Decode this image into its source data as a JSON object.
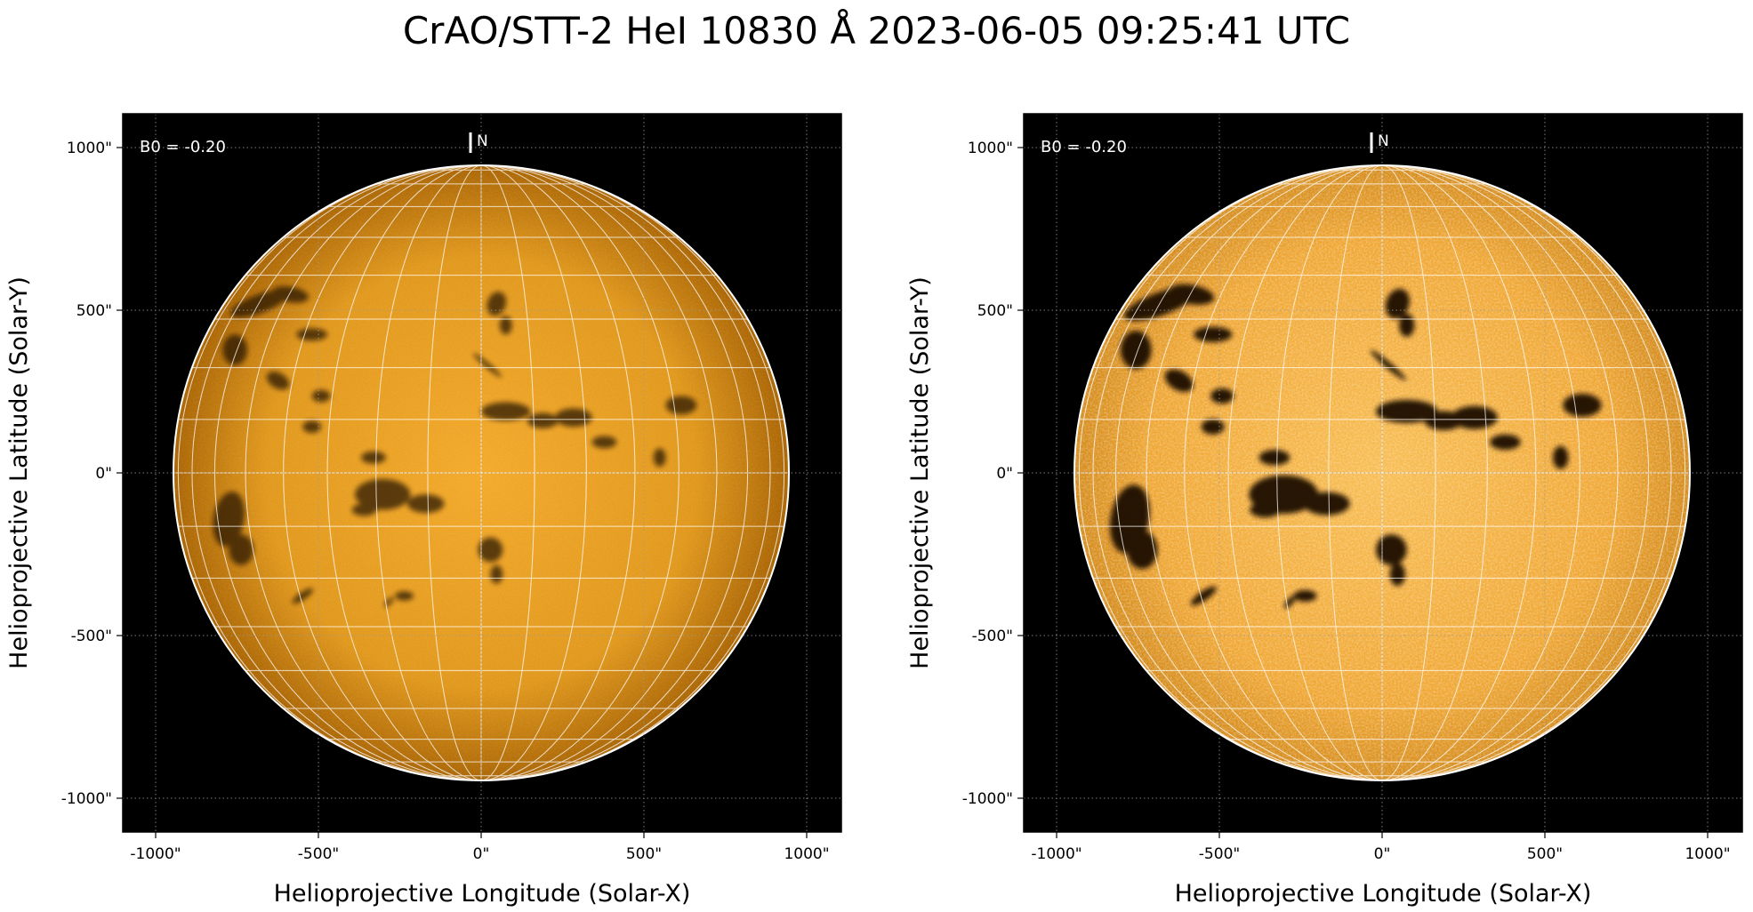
{
  "title": "CrAO/STT-2 HeI 10830 Å 2023-06-05 09:25:41 UTC",
  "panels": [
    {
      "id": "left",
      "xlabel": "Helioprojective Longitude (Solar-X)",
      "ylabel": "Helioprojective Latitude (Solar-Y)",
      "x_ticks": [
        "-1000\"",
        "-500\"",
        "0\"",
        "500\"",
        "1000\""
      ],
      "y_ticks": [
        "1000\"",
        "500\"",
        "0\"",
        "-500\"",
        "-1000\""
      ],
      "b0_label": "B0 = -0.20",
      "north_label": "N",
      "contrast": "normal"
    },
    {
      "id": "right",
      "xlabel": "Helioprojective Longitude (Solar-X)",
      "ylabel": "Helioprojective Latitude (Solar-Y)",
      "x_ticks": [
        "-1000\"",
        "-500\"",
        "0\"",
        "500\"",
        "1000\""
      ],
      "y_ticks": [
        "1000\"",
        "500\"",
        "0\"",
        "-500\"",
        "-1000\""
      ],
      "b0_label": "B0 = -0.20",
      "north_label": "N",
      "contrast": "enhanced"
    }
  ],
  "colors": {
    "sky": "#000000",
    "disk_center": "#f0a020",
    "disk_limb": "#b86a00",
    "disk_enhanced_center": "#f6b84a",
    "grid": "#ffffff",
    "filament": "#1a0c00"
  }
}
